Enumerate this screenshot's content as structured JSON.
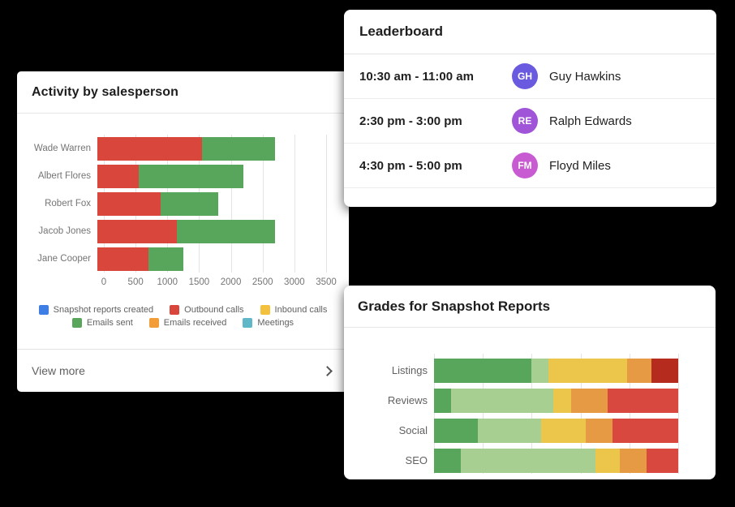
{
  "canvas": {
    "background": "#000000"
  },
  "activity_card": {
    "title": "Activity by salesperson",
    "view_more_label": "View more"
  },
  "leaderboard_card": {
    "title": "Leaderboard",
    "rows": [
      {
        "time": "10:30 am - 11:00 am",
        "initials": "GH",
        "name": "Guy Hawkins",
        "avatar_color": "#6a5ae0"
      },
      {
        "time": "2:30 pm - 3:00 pm",
        "initials": "RE",
        "name": "Ralph Edwards",
        "avatar_color": "#a055d8"
      },
      {
        "time": "4:30 pm - 5:00 pm",
        "initials": "FM",
        "name": "Floyd Miles",
        "avatar_color": "#c95bd2"
      }
    ]
  },
  "grades_card": {
    "title": "Grades for Snapshot Reports"
  },
  "chart_data": [
    {
      "type": "bar",
      "orientation": "horizontal",
      "stacked": true,
      "title": "Activity by salesperson",
      "categories": [
        "Wade Warren",
        "Albert Flores",
        "Robert Fox",
        "Jacob Jones",
        "Jane Cooper"
      ],
      "series": [
        {
          "name": "Snapshot reports created",
          "color": "#3e7ee5",
          "values": [
            0,
            0,
            0,
            0,
            0
          ]
        },
        {
          "name": "Outbound calls",
          "color": "#d9463b",
          "values": [
            1650,
            650,
            1000,
            1250,
            800
          ]
        },
        {
          "name": "Inbound calls",
          "color": "#f3c13d",
          "values": [
            0,
            0,
            0,
            0,
            0
          ]
        },
        {
          "name": "Emails sent",
          "color": "#57a65c",
          "values": [
            1150,
            1650,
            900,
            1550,
            550
          ]
        },
        {
          "name": "Emails received",
          "color": "#f29d38",
          "values": [
            0,
            0,
            0,
            0,
            0
          ]
        },
        {
          "name": "Meetings",
          "color": "#5fb7c8",
          "values": [
            0,
            0,
            0,
            0,
            0
          ]
        }
      ],
      "xlim": [
        0,
        3500
      ],
      "ticks": [
        0,
        500,
        1000,
        1500,
        2000,
        2500,
        3000,
        3500
      ],
      "grid": true,
      "legend_position": "bottom"
    },
    {
      "type": "bar",
      "orientation": "horizontal",
      "stacked": true,
      "title": "Grades for Snapshot Reports",
      "unit": "percent",
      "xlim": [
        0,
        100
      ],
      "gridline_step": 20,
      "categories": [
        "Listings",
        "Reviews",
        "Social",
        "SEO"
      ],
      "rows": [
        {
          "label": "Listings",
          "segments": [
            [
              "#57a65c",
              40
            ],
            [
              "#a7cf92",
              7
            ],
            [
              "#ecc64b",
              32
            ],
            [
              "#e69a43",
              10
            ],
            [
              "#b52c1e",
              11
            ]
          ]
        },
        {
          "label": "Reviews",
          "segments": [
            [
              "#57a65c",
              7
            ],
            [
              "#a7cf92",
              42
            ],
            [
              "#ecc64b",
              7
            ],
            [
              "#e69a43",
              15
            ],
            [
              "#d9483e",
              29
            ]
          ]
        },
        {
          "label": "Social",
          "segments": [
            [
              "#57a65c",
              18
            ],
            [
              "#a7cf92",
              26
            ],
            [
              "#ecc64b",
              18
            ],
            [
              "#e69a43",
              11
            ],
            [
              "#d9483e",
              27
            ]
          ]
        },
        {
          "label": "SEO",
          "segments": [
            [
              "#57a65c",
              11
            ],
            [
              "#a7cf92",
              55
            ],
            [
              "#ecc64b",
              10
            ],
            [
              "#e69a43",
              11
            ],
            [
              "#d9483e",
              13
            ]
          ]
        }
      ]
    }
  ]
}
